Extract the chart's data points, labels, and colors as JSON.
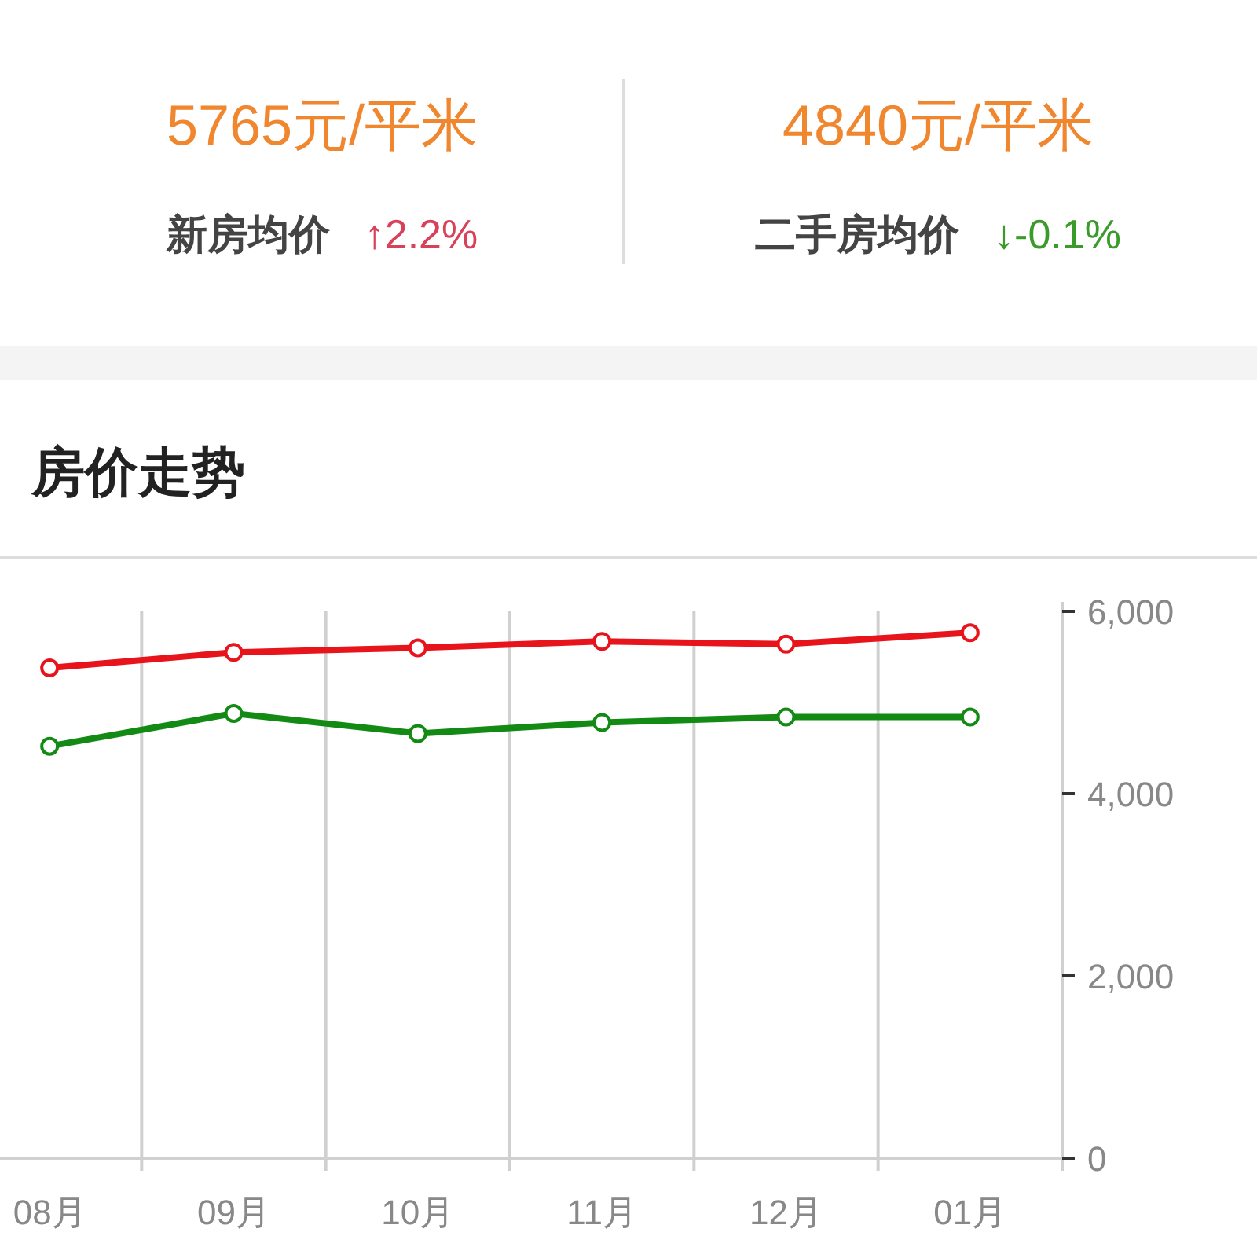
{
  "chart_data": {
    "type": "line",
    "title": "房价走势",
    "annotations": [
      "5765元/平米",
      "新房均价",
      "↑2.2%",
      "4840元/平米",
      "二手房均价",
      "↓-0.1%"
    ],
    "categories": [
      "08月",
      "09月",
      "10月",
      "11月",
      "12月",
      "01月"
    ],
    "series": [
      {
        "color": "#e8141b",
        "values": [
          5380,
          5550,
          5600,
          5670,
          5640,
          5765
        ]
      },
      {
        "color": "#138a13",
        "values": [
          4520,
          4880,
          4660,
          4780,
          4840,
          4840
        ]
      }
    ],
    "ylim": [
      0,
      6000
    ],
    "yticks": [
      {
        "value": 0,
        "label": "0"
      },
      {
        "value": 2000,
        "label": "2,000"
      },
      {
        "value": 4000,
        "label": "4,000"
      },
      {
        "value": 6000,
        "label": "6,000"
      }
    ],
    "grid": "x",
    "marker": "circle",
    "line_style": "solid"
  }
}
